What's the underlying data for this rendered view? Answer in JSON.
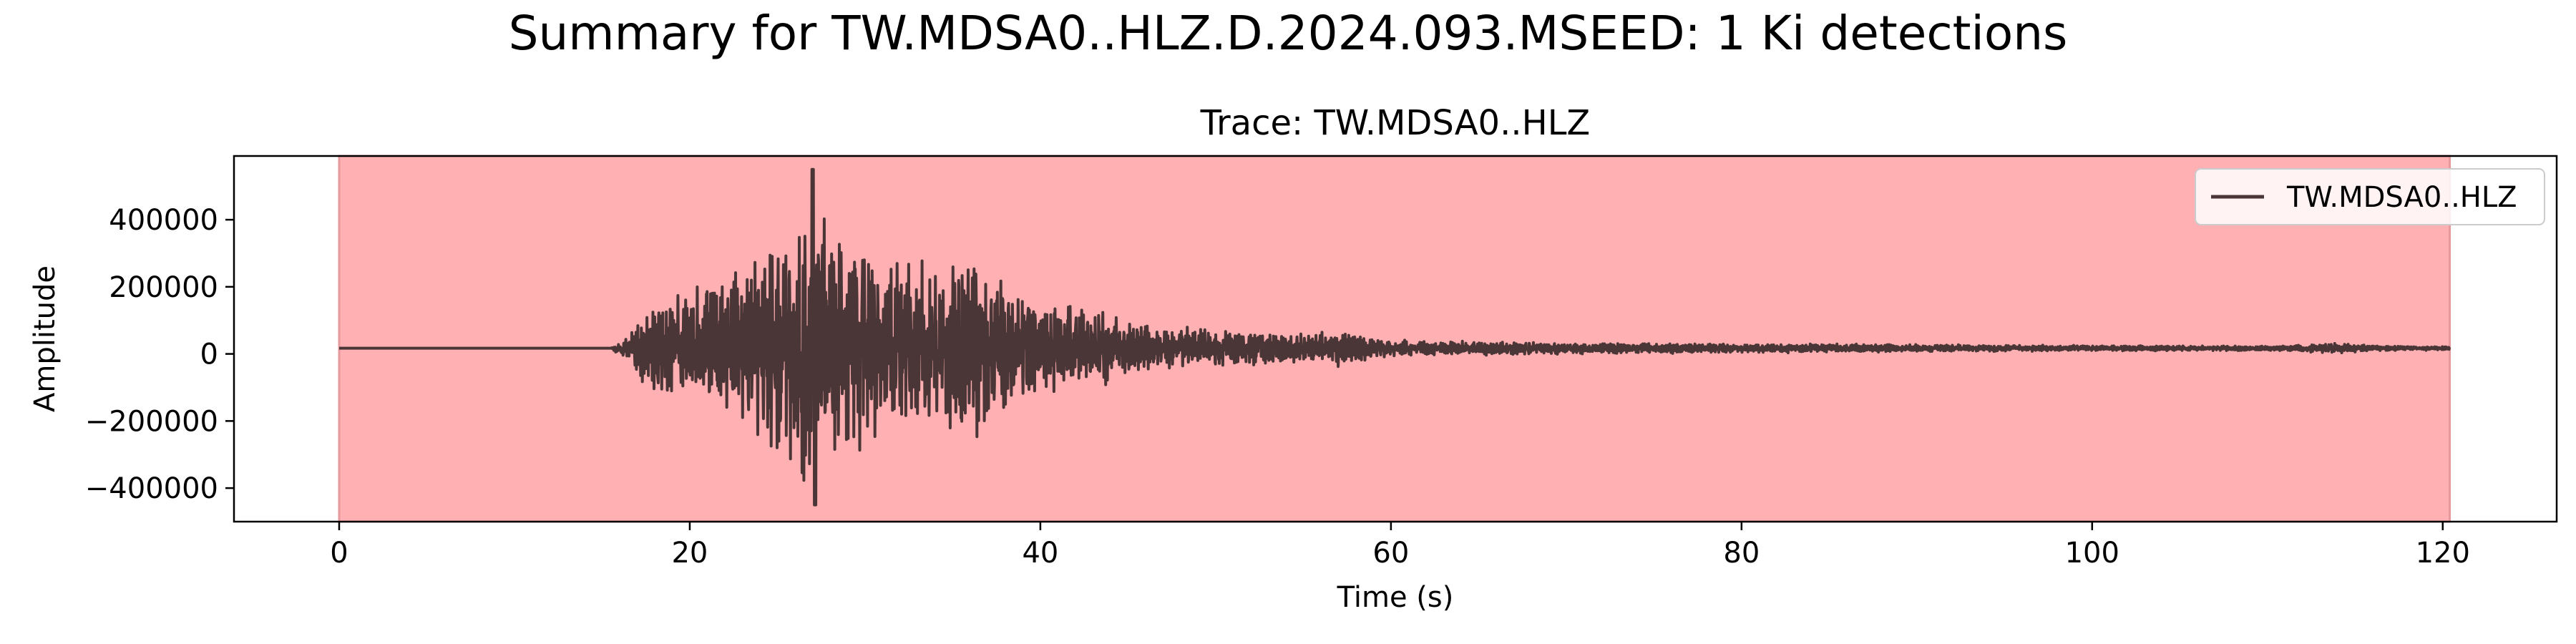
{
  "figure": {
    "suptitle": "Summary for TW.MDSA0..HLZ.D.2024.093.MSEED: 1 Ki detections"
  },
  "chart_data": {
    "type": "line",
    "title": "Trace: TW.MDSA0..HLZ",
    "xlabel": "Time (s)",
    "ylabel": "Amplitude",
    "xlim": [
      -6,
      126.5
    ],
    "ylim": [
      -500000,
      590000
    ],
    "xticks": [
      0,
      20,
      40,
      60,
      80,
      100,
      120
    ],
    "xtick_labels": [
      "0",
      "20",
      "40",
      "60",
      "80",
      "100",
      "120"
    ],
    "yticks": [
      -400000,
      -200000,
      0,
      200000,
      400000
    ],
    "ytick_labels": [
      "−400000",
      "−200000",
      "0",
      "200000",
      "400000"
    ],
    "grid": false,
    "legend": {
      "placement": "top-right",
      "entries": [
        "TW.MDSA0..HLZ"
      ]
    },
    "detection_span": {
      "label": "Ki",
      "x_start": 0,
      "x_end": 120.4,
      "color": "#ffb0b3"
    },
    "series": [
      {
        "name": "TW.MDSA0..HLZ",
        "color": "#4a3636",
        "baseline": 17000,
        "x_start": 0,
        "x_end": 120.4,
        "onset": 15.5,
        "peak_time": 27,
        "peak_max": 550000,
        "peak_min": -450000,
        "envelope": [
          [
            0,
            0
          ],
          [
            15.5,
            1000
          ],
          [
            16.5,
            30000
          ],
          [
            18,
            100000
          ],
          [
            20,
            130000
          ],
          [
            22,
            160000
          ],
          [
            24,
            220000
          ],
          [
            25.5,
            260000
          ],
          [
            27,
            300000
          ],
          [
            29,
            240000
          ],
          [
            31,
            200000
          ],
          [
            34,
            190000
          ],
          [
            36,
            200000
          ],
          [
            38,
            150000
          ],
          [
            40,
            110000
          ],
          [
            43,
            80000
          ],
          [
            46,
            55000
          ],
          [
            50,
            40000
          ],
          [
            55,
            30000
          ],
          [
            57,
            40000
          ],
          [
            60,
            17000
          ],
          [
            70,
            12000
          ],
          [
            80,
            10000
          ],
          [
            90,
            8000
          ],
          [
            100,
            6000
          ],
          [
            110,
            5000
          ],
          [
            114,
            11000
          ],
          [
            116,
            6000
          ],
          [
            120.4,
            4000
          ]
        ]
      }
    ]
  }
}
